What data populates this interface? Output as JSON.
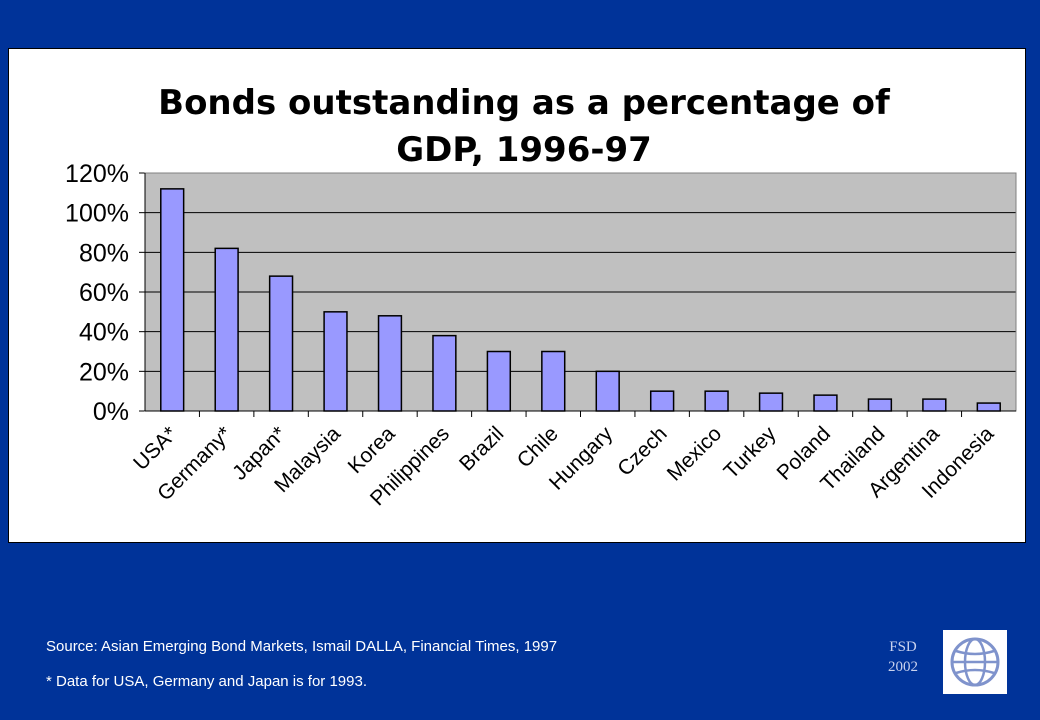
{
  "chart_data": {
    "type": "bar",
    "title_lines": [
      "Bonds outstanding as a percentage of",
      "GDP, 1996-97"
    ],
    "categories": [
      "USA*",
      "Germany*",
      "Japan*",
      "Malaysia",
      "Korea",
      "Philippines",
      "Brazil",
      "Chile",
      "Hungary",
      "Czech",
      "Mexico",
      "Turkey",
      "Poland",
      "Thailand",
      "Argentina",
      "Indonesia"
    ],
    "values": [
      112,
      82,
      68,
      50,
      48,
      38,
      30,
      30,
      20,
      10,
      10,
      9,
      8,
      6,
      6,
      4
    ],
    "y_ticks": [
      "0%",
      "20%",
      "40%",
      "60%",
      "80%",
      "100%",
      "120%"
    ],
    "ylim": [
      0,
      120
    ],
    "unit": "%",
    "grid": true,
    "bar_color": "#9999ff",
    "plot_background": "#c0c0c0"
  },
  "footer": {
    "source": "Source: Asian Emerging Bond Markets, Ismail DALLA, Financial Times, 1997",
    "note": "* Data for USA, Germany and Japan is for 1993.",
    "fsd": "FSD",
    "year": "2002"
  },
  "logo": {
    "icon": "globe-icon"
  },
  "colors": {
    "background": "#003399",
    "footer_text": "#ffffff"
  }
}
